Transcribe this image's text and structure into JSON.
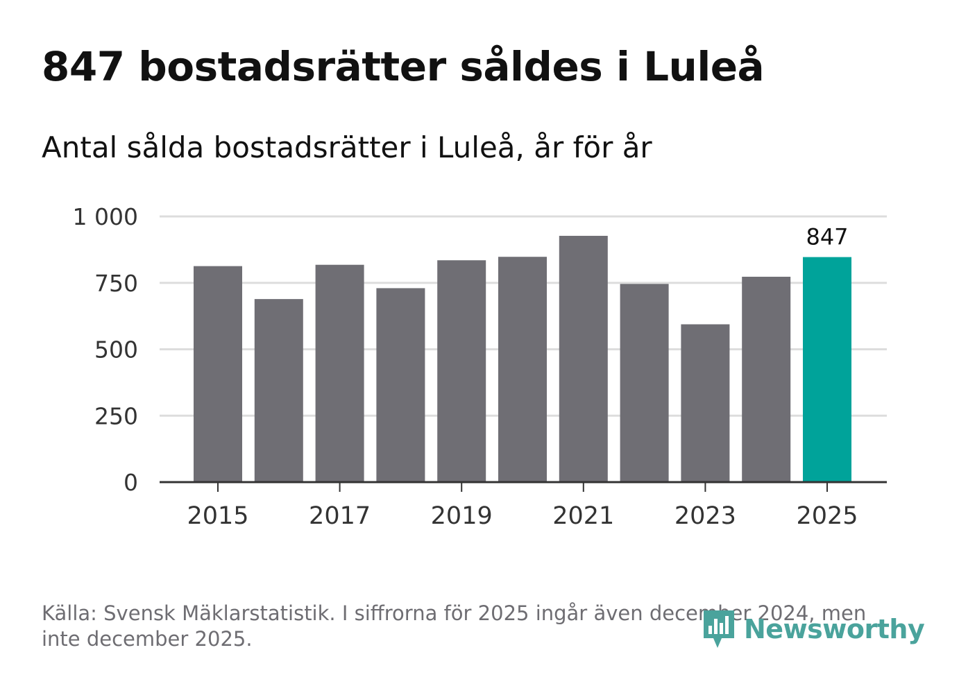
{
  "header": {
    "title": "847 bostadsrätter såldes i Luleå",
    "subtitle": "Antal sålda bostadsrätter i Luleå, år för år"
  },
  "footer": {
    "source": "Källa: Svensk Mäklarstatistik. I siffrorna för 2025 ingår även december 2024, men inte december 2025.",
    "logo_text": "Newsworthy"
  },
  "colors": {
    "bar": "#6f6e74",
    "highlight": "#00a39a",
    "grid": "#dddddd",
    "axis": "#333333",
    "brand": "#4aa39c"
  },
  "chart_data": {
    "type": "bar",
    "title": "847 bostadsrätter såldes i Luleå",
    "subtitle": "Antal sålda bostadsrätter i Luleå, år för år",
    "xlabel": "",
    "ylabel": "",
    "categories": [
      "2015",
      "2016",
      "2017",
      "2018",
      "2019",
      "2020",
      "2021",
      "2022",
      "2023",
      "2024",
      "2025"
    ],
    "values": [
      813,
      689,
      818,
      730,
      835,
      848,
      927,
      746,
      594,
      773,
      847
    ],
    "highlight_index": 10,
    "data_labels": [
      {
        "index": 10,
        "text": "847"
      }
    ],
    "ylim": [
      0,
      1000
    ],
    "yticks": [
      0,
      250,
      500,
      750,
      1000
    ],
    "ytick_labels": [
      "0",
      "250",
      "500",
      "750",
      "1 000"
    ],
    "xtick_labels": [
      "2015",
      "2017",
      "2019",
      "2021",
      "2023",
      "2025"
    ],
    "grid": true,
    "legend": "none"
  }
}
